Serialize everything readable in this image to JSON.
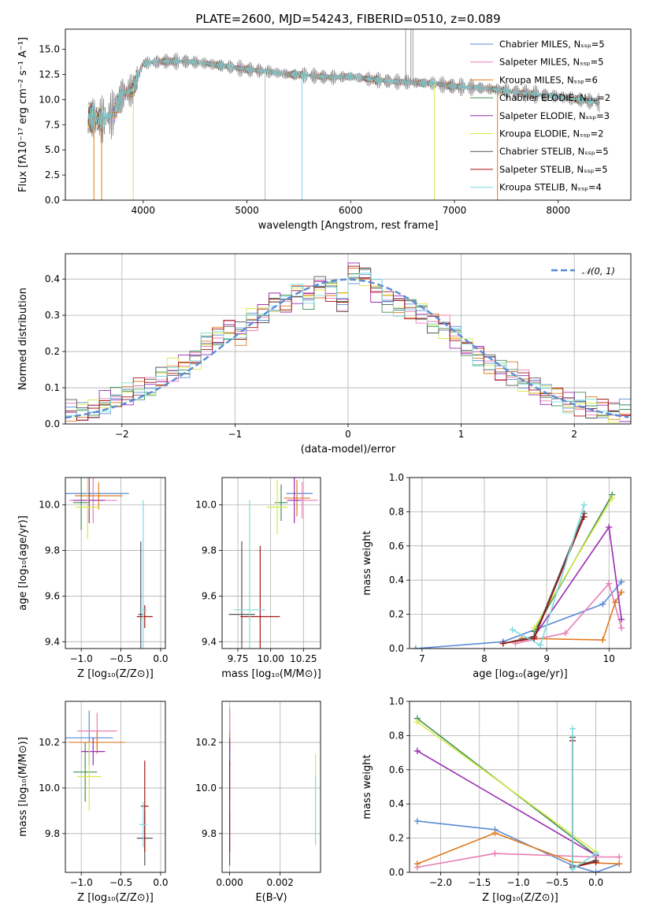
{
  "colors": {
    "chabrier_miles": "#5b8bd6",
    "salpeter_miles": "#e87cb5",
    "kroupa_miles": "#e07b1f",
    "chabrier_elodie": "#3f8f55",
    "salpeter_elodie": "#9b2cb2",
    "kroupa_elodie": "#d7ea45",
    "chabrier_stelib": "#555555",
    "salpeter_stelib": "#a31515",
    "kroupa_stelib": "#7edbe0",
    "data": "#808080",
    "normal": "#5b8bd6"
  },
  "chart_data": [
    {
      "id": "spectrum",
      "type": "line",
      "title": "PLATE=2600, MJD=54243, FIBERID=0510, z=0.089",
      "xlabel": "wavelength [Angstrom, rest frame]",
      "ylabel": "Flux [fλ10⁻¹⁷ erg cm⁻² s⁻¹ A⁻¹]",
      "xlim": [
        3250,
        8700
      ],
      "ylim": [
        0,
        17
      ],
      "xticks": [
        "4000",
        "5000",
        "6000",
        "7000",
        "8000"
      ],
      "yticks": [
        "0.0",
        "2.5",
        "5.0",
        "7.5",
        "10.0",
        "12.5",
        "15.0"
      ],
      "legend_position": "top-right",
      "x": [
        3500,
        3600,
        3700,
        3800,
        3900,
        4000,
        4200,
        4400,
        4600,
        4800,
        5000,
        5200,
        5400,
        5600,
        5800,
        6000,
        6200,
        6400,
        6600,
        6800,
        7000,
        7200,
        7400,
        7600,
        7800,
        8000,
        8200,
        8400
      ],
      "y": [
        8.2,
        8.0,
        8.5,
        10.5,
        11.0,
        13.6,
        13.8,
        13.8,
        13.6,
        13.3,
        13.0,
        12.8,
        12.5,
        12.4,
        12.2,
        12.3,
        12.0,
        11.8,
        11.7,
        11.6,
        11.3,
        11.2,
        11.0,
        10.7,
        10.5,
        10.3,
        10.0,
        9.7
      ],
      "series": [
        {
          "name": "Chabrier MILES, Nₛₛₚ=5",
          "color": "#5b8bd6"
        },
        {
          "name": "Salpeter MILES, Nₛₛₚ=5",
          "color": "#e87cb5"
        },
        {
          "name": "Kroupa MILES, Nₛₛₚ=6",
          "color": "#e07b1f"
        },
        {
          "name": "Chabrier ELODIE, Nₛₛₚ=2",
          "color": "#3f8f55"
        },
        {
          "name": "Salpeter ELODIE, Nₛₛₚ=3",
          "color": "#9b2cb2"
        },
        {
          "name": "Kroupa ELODIE, Nₛₛₚ=2",
          "color": "#d7ea45"
        },
        {
          "name": "Chabrier STELIB, Nₛₛₚ=5",
          "color": "#555555"
        },
        {
          "name": "Salpeter STELIB, Nₛₛₚ=5",
          "color": "#a31515"
        },
        {
          "name": "Kroupa STELIB, Nₛₛₚ=4",
          "color": "#7edbe0"
        }
      ]
    },
    {
      "id": "residuals",
      "type": "line",
      "title": "",
      "xlabel": "(data-model)/error",
      "ylabel": "Normed distribution",
      "xlim": [
        -2.5,
        2.5
      ],
      "ylim": [
        0,
        0.47
      ],
      "xticks": [
        "−2",
        "−1",
        "0",
        "1",
        "2"
      ],
      "yticks": [
        "0.0",
        "0.1",
        "0.2",
        "0.3",
        "0.4"
      ],
      "legend_position": "top-right",
      "legend": [
        "𝒩(0, 1)"
      ],
      "bins_x": [
        -2.5,
        -2.4,
        -2.3,
        -2.2,
        -2.1,
        -2.0,
        -1.9,
        -1.8,
        -1.7,
        -1.6,
        -1.5,
        -1.4,
        -1.3,
        -1.2,
        -1.1,
        -1.0,
        -0.9,
        -0.8,
        -0.7,
        -0.6,
        -0.5,
        -0.4,
        -0.3,
        -0.2,
        -0.1,
        0.0,
        0.1,
        0.2,
        0.3,
        0.4,
        0.5,
        0.6,
        0.7,
        0.8,
        0.9,
        1.0,
        1.1,
        1.2,
        1.3,
        1.4,
        1.5,
        1.6,
        1.7,
        1.8,
        1.9,
        2.0,
        2.1,
        2.2,
        2.3,
        2.4
      ],
      "hist": [
        0.035,
        0.03,
        0.04,
        0.06,
        0.07,
        0.08,
        0.095,
        0.1,
        0.13,
        0.15,
        0.16,
        0.18,
        0.22,
        0.24,
        0.26,
        0.25,
        0.29,
        0.31,
        0.34,
        0.33,
        0.36,
        0.35,
        0.38,
        0.37,
        0.34,
        0.42,
        0.41,
        0.37,
        0.34,
        0.33,
        0.32,
        0.31,
        0.28,
        0.27,
        0.24,
        0.21,
        0.19,
        0.17,
        0.15,
        0.14,
        0.12,
        0.1,
        0.08,
        0.08,
        0.06,
        0.055,
        0.045,
        0.04,
        0.03,
        0.035
      ]
    },
    {
      "id": "age_vs_Z",
      "type": "scatter",
      "xlabel": "Z [log₁₀(Z/Z⊙)]",
      "ylabel": "age  [log₁₀(age/yr)]",
      "xlim": [
        -1.2,
        0.06
      ],
      "ylim": [
        9.37,
        10.12
      ],
      "xticks": [
        "−1.0",
        "−0.5",
        "0.0"
      ],
      "yticks": [
        "9.4",
        "9.6",
        "9.8",
        "10.0"
      ],
      "points": [
        {
          "x": -0.8,
          "y": 10.05,
          "xerr": 0.4,
          "yerr": 0.0,
          "color": "#5b8bd6"
        },
        {
          "x": -0.85,
          "y": 10.02,
          "xerr": 0.3,
          "yerr": 0.1,
          "color": "#e87cb5"
        },
        {
          "x": -0.78,
          "y": 10.04,
          "xerr": 0.3,
          "yerr": 0.06,
          "color": "#e07b1f"
        },
        {
          "x": -1.0,
          "y": 10.01,
          "xerr": 0.1,
          "yerr": 0.12,
          "color": "#3f8f55"
        },
        {
          "x": -0.9,
          "y": 10.02,
          "xerr": 0.2,
          "yerr": 0.1,
          "color": "#9b2cb2"
        },
        {
          "x": -0.92,
          "y": 9.99,
          "xerr": 0.15,
          "yerr": 0.14,
          "color": "#d7ea45"
        },
        {
          "x": -0.25,
          "y": 9.52,
          "xerr": 0.03,
          "yerr": 0.32,
          "color": "#555555"
        },
        {
          "x": -0.2,
          "y": 9.51,
          "xerr": 0.1,
          "yerr": 0.05,
          "color": "#a31515"
        },
        {
          "x": -0.22,
          "y": 9.54,
          "xerr": 0.05,
          "yerr": 0.48,
          "color": "#7edbe0"
        }
      ]
    },
    {
      "id": "age_vs_mass",
      "type": "scatter",
      "xlabel": "mass [log₁₀(M/M⊙)]",
      "ylabel": "",
      "xlim": [
        9.63,
        10.38
      ],
      "ylim": [
        9.37,
        10.12
      ],
      "xticks": [
        "9.75",
        "10.00",
        "10.25"
      ],
      "yticks": [
        "9.4",
        "9.6",
        "9.8",
        "10.0"
      ],
      "points": [
        {
          "x": 10.22,
          "y": 10.05,
          "xerr": 0.1,
          "yerr": 0.0,
          "color": "#5b8bd6"
        },
        {
          "x": 10.24,
          "y": 10.02,
          "xerr": 0.12,
          "yerr": 0.08,
          "color": "#e87cb5"
        },
        {
          "x": 10.2,
          "y": 10.03,
          "xerr": 0.1,
          "yerr": 0.08,
          "color": "#e07b1f"
        },
        {
          "x": 10.08,
          "y": 10.01,
          "xerr": 0.05,
          "yerr": 0.08,
          "color": "#3f8f55"
        },
        {
          "x": 10.18,
          "y": 10.02,
          "xerr": 0.05,
          "yerr": 0.1,
          "color": "#9b2cb2"
        },
        {
          "x": 10.05,
          "y": 9.99,
          "xerr": 0.08,
          "yerr": 0.12,
          "color": "#d7ea45"
        },
        {
          "x": 9.78,
          "y": 9.52,
          "xerr": 0.1,
          "yerr": 0.32,
          "color": "#555555"
        },
        {
          "x": 9.92,
          "y": 9.51,
          "xerr": 0.15,
          "yerr": 0.31,
          "color": "#a31515"
        },
        {
          "x": 9.84,
          "y": 9.54,
          "xerr": 0.12,
          "yerr": 0.48,
          "color": "#7edbe0"
        }
      ]
    },
    {
      "id": "weight_vs_age",
      "type": "line",
      "xlabel": "age  [log₁₀(age/yr)]",
      "ylabel": "mass weight",
      "xlim": [
        6.8,
        10.35
      ],
      "ylim": [
        0,
        1.0
      ],
      "xticks": [
        "7",
        "8",
        "9",
        "10"
      ],
      "yticks": [
        "0.0",
        "0.2",
        "0.4",
        "0.6",
        "0.8",
        "1.0"
      ],
      "series": [
        {
          "name": "Chabrier MILES",
          "color": "#5b8bd6",
          "x": [
            6.9,
            8.3,
            9.9,
            10.2
          ],
          "y": [
            0.0,
            0.04,
            0.26,
            0.39
          ]
        },
        {
          "name": "Salpeter MILES",
          "color": "#e87cb5",
          "x": [
            8.5,
            9.3,
            10.0,
            10.2
          ],
          "y": [
            0.03,
            0.09,
            0.38,
            0.12
          ]
        },
        {
          "name": "Kroupa MILES",
          "color": "#e07b1f",
          "x": [
            8.6,
            9.9,
            10.1,
            10.2
          ],
          "y": [
            0.06,
            0.05,
            0.27,
            0.33
          ]
        },
        {
          "name": "Chabrier ELODIE",
          "color": "#3f8f55",
          "x": [
            8.8,
            10.05
          ],
          "y": [
            0.1,
            0.9
          ]
        },
        {
          "name": "Salpeter ELODIE",
          "color": "#9b2cb2",
          "x": [
            8.8,
            10.0,
            10.2
          ],
          "y": [
            0.07,
            0.71,
            0.17
          ]
        },
        {
          "name": "Kroupa ELODIE",
          "color": "#d7ea45",
          "x": [
            8.8,
            10.05
          ],
          "y": [
            0.12,
            0.88
          ]
        },
        {
          "name": "Chabrier STELIB",
          "color": "#555555",
          "x": [
            8.3,
            8.8,
            9.6
          ],
          "y": [
            0.03,
            0.07,
            0.79
          ]
        },
        {
          "name": "Salpeter STELIB",
          "color": "#a31515",
          "x": [
            8.3,
            8.8,
            9.6
          ],
          "y": [
            0.03,
            0.06,
            0.77
          ]
        },
        {
          "name": "Kroupa STELIB",
          "color": "#7edbe0",
          "x": [
            8.45,
            8.9,
            9.6
          ],
          "y": [
            0.11,
            0.02,
            0.84
          ]
        }
      ]
    },
    {
      "id": "mass_vs_Z",
      "type": "scatter",
      "xlabel": "Z [log₁₀(Z/Z⊙)]",
      "ylabel": "mass [log₁₀(M/M⊙)]",
      "xlim": [
        -1.2,
        0.06
      ],
      "ylim": [
        9.63,
        10.38
      ],
      "xticks": [
        "−1.0",
        "−0.5",
        "0.0"
      ],
      "yticks": [
        "9.8",
        "10.0",
        "10.2"
      ],
      "points": [
        {
          "x": -0.9,
          "y": 10.22,
          "xerr": 0.3,
          "yerr": 0.12,
          "color": "#5b8bd6"
        },
        {
          "x": -0.8,
          "y": 10.25,
          "xerr": 0.25,
          "yerr": 0.08,
          "color": "#e87cb5"
        },
        {
          "x": -0.8,
          "y": 10.2,
          "xerr": 0.35,
          "yerr": 0.05,
          "color": "#e07b1f"
        },
        {
          "x": -0.95,
          "y": 10.07,
          "xerr": 0.15,
          "yerr": 0.13,
          "color": "#3f8f55"
        },
        {
          "x": -0.85,
          "y": 10.16,
          "xerr": 0.15,
          "yerr": 0.06,
          "color": "#9b2cb2"
        },
        {
          "x": -0.9,
          "y": 10.05,
          "xerr": 0.15,
          "yerr": 0.15,
          "color": "#d7ea45"
        },
        {
          "x": -0.2,
          "y": 9.78,
          "xerr": 0.1,
          "yerr": 0.12,
          "color": "#555555"
        },
        {
          "x": -0.2,
          "y": 9.92,
          "xerr": 0.05,
          "yerr": 0.2,
          "color": "#a31515"
        },
        {
          "x": -0.22,
          "y": 9.84,
          "xerr": 0.05,
          "yerr": 0.1,
          "color": "#7edbe0"
        }
      ]
    },
    {
      "id": "mass_vs_ebv",
      "type": "scatter",
      "xlabel": "E(B-V)",
      "ylabel": "",
      "xlim": [
        -0.0003,
        0.0036
      ],
      "ylim": [
        9.63,
        10.38
      ],
      "xticks": [
        "0.000",
        "0.002"
      ],
      "yticks": [
        "9.8",
        "10.0",
        "10.2"
      ],
      "points": [
        {
          "x": 0.0,
          "y": 10.22,
          "xerr": 0.0,
          "yerr": 0.12,
          "color": "#5b8bd6"
        },
        {
          "x": 0.0,
          "y": 10.25,
          "xerr": 0.0,
          "yerr": 0.1,
          "color": "#e87cb5"
        },
        {
          "x": 0.0,
          "y": 10.2,
          "xerr": 0.0,
          "yerr": 0.05,
          "color": "#e07b1f"
        },
        {
          "x": 0.0,
          "y": 10.07,
          "xerr": 0.0,
          "yerr": 0.13,
          "color": "#3f8f55"
        },
        {
          "x": 0.0,
          "y": 10.16,
          "xerr": 0.0,
          "yerr": 0.06,
          "color": "#9b2cb2"
        },
        {
          "x": 0.0034,
          "y": 10.05,
          "xerr": 0.0,
          "yerr": 0.1,
          "color": "#d7ea45"
        },
        {
          "x": 0.0,
          "y": 9.78,
          "xerr": 0.0,
          "yerr": 0.12,
          "color": "#555555"
        },
        {
          "x": 0.0,
          "y": 9.92,
          "xerr": 0.0,
          "yerr": 0.2,
          "color": "#a31515"
        },
        {
          "x": 0.0034,
          "y": 9.9,
          "xerr": 0.0,
          "yerr": 0.15,
          "color": "#7edbe0"
        }
      ]
    },
    {
      "id": "weight_vs_Z",
      "type": "line",
      "xlabel": "Z [log₁₀(Z/Z⊙)]",
      "ylabel": "mass weight",
      "xlim": [
        -2.4,
        0.45
      ],
      "ylim": [
        0,
        1.0
      ],
      "xticks": [
        "−2.0",
        "−1.5",
        "−1.0",
        "−0.5",
        "0.0"
      ],
      "yticks": [
        "0.0",
        "0.2",
        "0.4",
        "0.6",
        "0.8",
        "1.0"
      ],
      "series": [
        {
          "name": "Chabrier MILES",
          "color": "#5b8bd6",
          "x": [
            -2.3,
            -1.3,
            -0.3,
            0.0,
            0.3
          ],
          "y": [
            0.3,
            0.25,
            0.04,
            0.0,
            0.05
          ]
        },
        {
          "name": "Salpeter MILES",
          "color": "#e87cb5",
          "x": [
            -2.3,
            -1.3,
            0.0,
            0.3
          ],
          "y": [
            0.03,
            0.11,
            0.09,
            0.09
          ]
        },
        {
          "name": "Kroupa MILES",
          "color": "#e07b1f",
          "x": [
            -2.3,
            -1.3,
            -0.3,
            0.3
          ],
          "y": [
            0.05,
            0.23,
            0.06,
            0.05
          ]
        },
        {
          "name": "Chabrier ELODIE",
          "color": "#3f8f55",
          "x": [
            -2.3,
            0.0
          ],
          "y": [
            0.9,
            0.1
          ]
        },
        {
          "name": "Salpeter ELODIE",
          "color": "#9b2cb2",
          "x": [
            -2.3,
            0.0
          ],
          "y": [
            0.71,
            0.1
          ]
        },
        {
          "name": "Kroupa ELODIE",
          "color": "#d7ea45",
          "x": [
            -2.3,
            0.0
          ],
          "y": [
            0.88,
            0.12
          ]
        },
        {
          "name": "Chabrier STELIB",
          "color": "#555555",
          "x": [
            -0.3,
            -0.3,
            0.0
          ],
          "y": [
            0.79,
            0.03,
            0.07
          ]
        },
        {
          "name": "Salpeter STELIB",
          "color": "#a31515",
          "x": [
            -0.3,
            -0.3,
            0.0
          ],
          "y": [
            0.77,
            0.03,
            0.06
          ]
        },
        {
          "name": "Kroupa STELIB",
          "color": "#7edbe0",
          "x": [
            -0.3,
            -0.3,
            0.0
          ],
          "y": [
            0.84,
            0.02,
            0.11
          ]
        }
      ]
    }
  ]
}
